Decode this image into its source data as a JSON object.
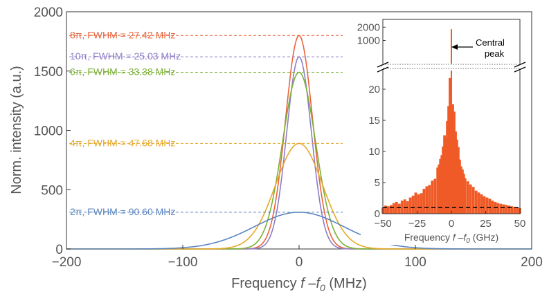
{
  "chart_data": [
    {
      "type": "line",
      "xlabel_main": "Frequency ",
      "xlabel_var": "f",
      "xlabel_dash": " –",
      "xlabel_sub_base": "f",
      "xlabel_sub": "0",
      "xlabel_unit": " (MHz)",
      "ylabel": "Norm. intensity (a.u.)",
      "xlim": [
        -200,
        200
      ],
      "ylim": [
        0,
        2000
      ],
      "xticks": [
        -200,
        -100,
        0,
        100,
        200
      ],
      "xtick_labels": [
        "−200",
        "−100",
        "0",
        "100",
        "200"
      ],
      "yticks": [
        0,
        500,
        1000,
        1500,
        2000
      ],
      "ytick_labels": [
        "0",
        "500",
        "1000",
        "1500",
        "2000"
      ],
      "grid": false,
      "series": [
        {
          "name": "8π, FWHM = 27.42 MHz",
          "label": "8π, FWHM = 27.42 MHz",
          "peak": 1800,
          "fwhm": 27.42,
          "color": "#e8643c"
        },
        {
          "name": "10π, FWHM = 25.03 MHz",
          "label": "10π, FWHM = 25.03 MHz",
          "peak": 1620,
          "fwhm": 25.03,
          "color": "#8f7dc6"
        },
        {
          "name": "6π, FWHM = 33.38 MHz",
          "label": "6π, FWHM = 33.38 MHz",
          "peak": 1490,
          "fwhm": 33.38,
          "color": "#7ab034"
        },
        {
          "name": "4π, FWHM = 47.68 MHz",
          "label": "4π, FWHM = 47.68 MHz",
          "peak": 890,
          "fwhm": 47.68,
          "color": "#e5a82a"
        },
        {
          "name": "2π, FWHM = 90.60 MHz",
          "label": "2π, FWHM = 90.60 MHz",
          "peak": 310,
          "fwhm": 90.6,
          "color": "#5b85c0"
        }
      ]
    },
    {
      "type": "bar",
      "inset": true,
      "xlabel_main": "Frequency ",
      "xlabel_var": "f",
      "xlabel_dash": " –",
      "xlabel_sub_base": "f",
      "xlabel_sub": "0",
      "xlabel_unit": " (GHz)",
      "xlim": [
        -50,
        50
      ],
      "xticks": [
        -50,
        -25,
        0,
        25,
        50
      ],
      "xtick_labels": [
        "−50",
        "−25",
        "0",
        "25",
        "50"
      ],
      "ylim_lower": [
        0,
        23
      ],
      "yticks_lower": [
        0,
        5,
        10,
        15,
        20
      ],
      "ytick_labels_lower": [
        "0",
        "5",
        "10",
        "15",
        "20"
      ],
      "ylim_upper": [
        300,
        3000
      ],
      "yticks_upper": [
        1000,
        2000
      ],
      "ytick_labels_upper": [
        "1000",
        "2000"
      ],
      "bar_color": "#ef5a27",
      "annotation": [
        "Central",
        "peak"
      ],
      "baseline_value": 1.0,
      "central_peak_value": 1800,
      "x": [
        -50,
        -48,
        -46,
        -44,
        -42,
        -40,
        -38,
        -36,
        -34,
        -32,
        -30,
        -28,
        -26,
        -24,
        -22,
        -20,
        -18,
        -16,
        -14,
        -12,
        -10,
        -9,
        -8,
        -7,
        -6,
        -5,
        -4,
        -3,
        -2,
        -1,
        0,
        1,
        2,
        3,
        4,
        5,
        6,
        7,
        8,
        9,
        10,
        12,
        14,
        16,
        18,
        20,
        22,
        24,
        26,
        28,
        30,
        32,
        34,
        36,
        38,
        40,
        42,
        44,
        46,
        48,
        50
      ],
      "values": [
        1.0,
        1.3,
        1.2,
        1.4,
        1.7,
        1.9,
        1.6,
        2.1,
        2.3,
        2.0,
        2.6,
        2.9,
        3.4,
        3.1,
        3.3,
        4.0,
        4.4,
        4.6,
        5.3,
        5.6,
        7.4,
        7.9,
        8.8,
        9.4,
        10.8,
        12.6,
        12.1,
        14.9,
        17.3,
        21.8,
        1800,
        17.6,
        16.4,
        13.2,
        11.9,
        10.7,
        8.7,
        7.6,
        7.1,
        6.4,
        5.7,
        5.2,
        4.7,
        4.3,
        3.7,
        3.4,
        3.1,
        2.8,
        2.6,
        2.4,
        2.1,
        1.9,
        1.7,
        1.6,
        1.5,
        1.4,
        1.3,
        1.2,
        1.1,
        1.0,
        0.9
      ]
    }
  ]
}
